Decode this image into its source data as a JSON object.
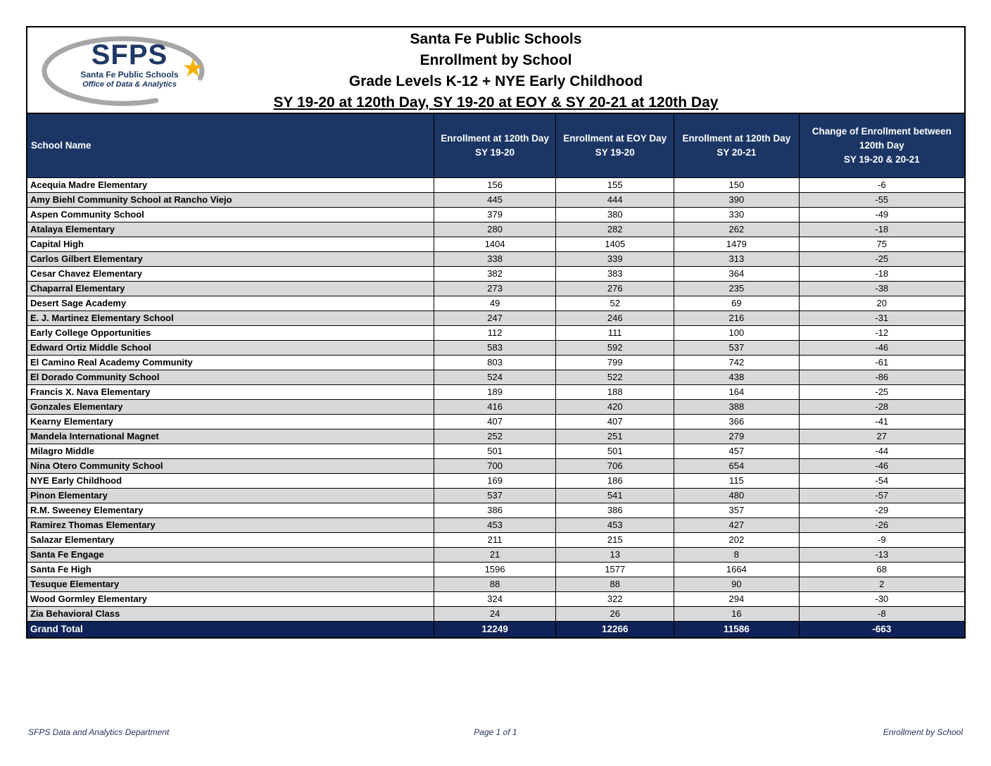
{
  "logo": {
    "acronym": "SFPS",
    "org": "Santa Fe Public Schools",
    "dept": "Office of Data & Analytics",
    "star_icon": "star",
    "colors": {
      "navy": "#1F3864",
      "swoosh_gray": "#A6A6A6",
      "star_gold": "#F5B300"
    }
  },
  "title": {
    "line1": "Santa Fe Public Schools",
    "line2": "Enrollment by School",
    "line3": "Grade Levels K-12 + NYE Early Childhood",
    "line4": "SY 19-20 at 120th Day, SY 19-20 at EOY & SY 20-21 at 120th Day"
  },
  "table": {
    "columns": [
      "School Name",
      "Enrollment at 120th Day\nSY 19-20",
      "Enrollment at EOY Day\nSY 19-20",
      "Enrollment at 120th Day\nSY 20-21",
      "Change of Enrollment between\n120th Day\nSY 19-20 & 20-21"
    ],
    "rows": [
      [
        "Acequia Madre Elementary",
        "156",
        "155",
        "150",
        "-6"
      ],
      [
        "Amy Biehl Community School at Rancho Viejo",
        "445",
        "444",
        "390",
        "-55"
      ],
      [
        "Aspen Community School",
        "379",
        "380",
        "330",
        "-49"
      ],
      [
        "Atalaya Elementary",
        "280",
        "282",
        "262",
        "-18"
      ],
      [
        "Capital High",
        "1404",
        "1405",
        "1479",
        "75"
      ],
      [
        "Carlos Gilbert Elementary",
        "338",
        "339",
        "313",
        "-25"
      ],
      [
        "Cesar Chavez Elementary",
        "382",
        "383",
        "364",
        "-18"
      ],
      [
        "Chaparral Elementary",
        "273",
        "276",
        "235",
        "-38"
      ],
      [
        "Desert Sage Academy",
        "49",
        "52",
        "69",
        "20"
      ],
      [
        "E. J. Martinez Elementary School",
        "247",
        "246",
        "216",
        "-31"
      ],
      [
        "Early College Opportunities",
        "112",
        "111",
        "100",
        "-12"
      ],
      [
        "Edward Ortiz Middle School",
        "583",
        "592",
        "537",
        "-46"
      ],
      [
        "El Camino Real Academy Community",
        "803",
        "799",
        "742",
        "-61"
      ],
      [
        "El Dorado Community School",
        "524",
        "522",
        "438",
        "-86"
      ],
      [
        "Francis X. Nava Elementary",
        "189",
        "188",
        "164",
        "-25"
      ],
      [
        "Gonzales Elementary",
        "416",
        "420",
        "388",
        "-28"
      ],
      [
        "Kearny Elementary",
        "407",
        "407",
        "366",
        "-41"
      ],
      [
        "Mandela International Magnet",
        "252",
        "251",
        "279",
        "27"
      ],
      [
        "Milagro Middle",
        "501",
        "501",
        "457",
        "-44"
      ],
      [
        "Nina Otero Community School",
        "700",
        "706",
        "654",
        "-46"
      ],
      [
        "NYE Early Childhood",
        "169",
        "186",
        "115",
        "-54"
      ],
      [
        "Pinon Elementary",
        "537",
        "541",
        "480",
        "-57"
      ],
      [
        "R.M. Sweeney Elementary",
        "386",
        "386",
        "357",
        "-29"
      ],
      [
        "Ramirez Thomas Elementary",
        "453",
        "453",
        "427",
        "-26"
      ],
      [
        "Salazar Elementary",
        "211",
        "215",
        "202",
        "-9"
      ],
      [
        "Santa Fe Engage",
        "21",
        "13",
        "8",
        "-13"
      ],
      [
        "Santa Fe High",
        "1596",
        "1577",
        "1664",
        "68"
      ],
      [
        "Tesuque Elementary",
        "88",
        "88",
        "90",
        "2"
      ],
      [
        "Wood Gormley Elementary",
        "324",
        "322",
        "294",
        "-30"
      ],
      [
        "Zia Behavioral Class",
        "24",
        "26",
        "16",
        "-8"
      ]
    ],
    "grand_total": {
      "label": "Grand Total",
      "values": [
        "12249",
        "12266",
        "11586",
        "-663"
      ]
    },
    "colors": {
      "header_bg": "#1B3665",
      "total_bg": "#0F2359",
      "row_alt": "#D9D9D9"
    }
  },
  "footer": {
    "left": "SFPS Data and Analytics Department",
    "center": "Page 1 of 1",
    "right": "Enrollment by School"
  }
}
